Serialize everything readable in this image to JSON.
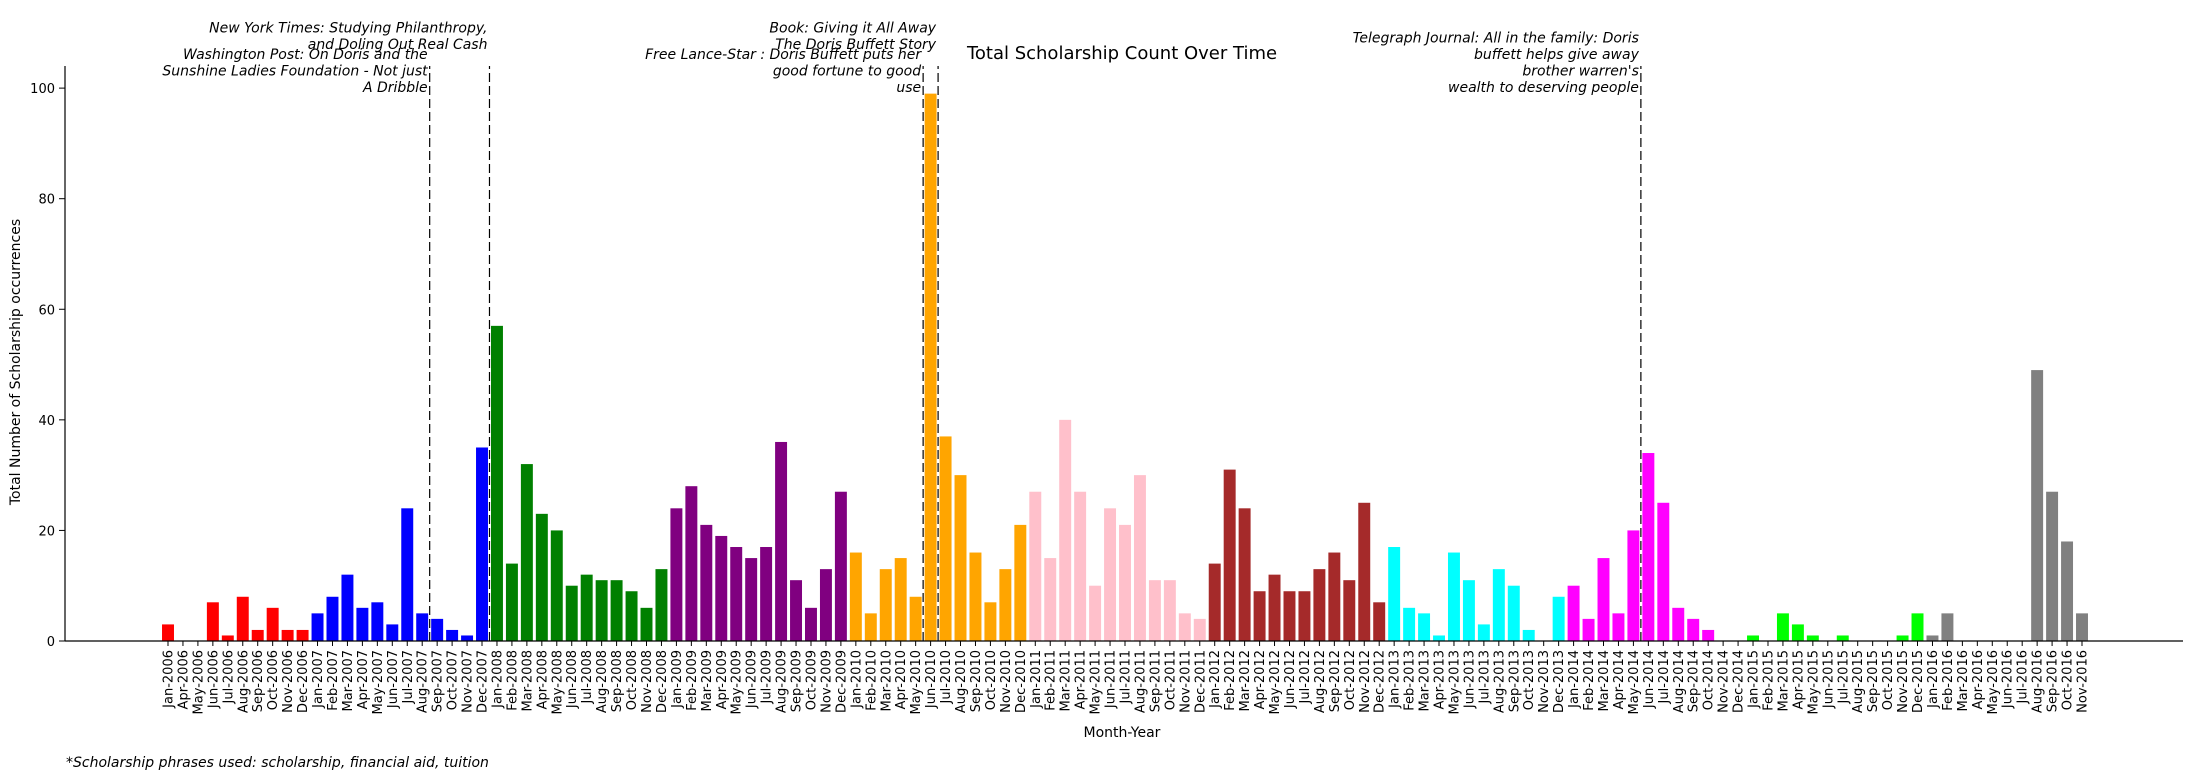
{
  "chart_data": {
    "type": "bar",
    "title": "Total Scholarship Count Over Time",
    "xlabel": "Month-Year",
    "ylabel": "Total Number of Scholarship occurrences",
    "ylim": [
      0,
      104
    ],
    "yticks": [
      0,
      20,
      40,
      60,
      80,
      100
    ],
    "grid": false,
    "legend": "none",
    "categories": [
      "Jan-2006",
      "Apr-2006",
      "May-2006",
      "Jun-2006",
      "Jul-2006",
      "Aug-2006",
      "Sep-2006",
      "Oct-2006",
      "Nov-2006",
      "Dec-2006",
      "Jan-2007",
      "Feb-2007",
      "Mar-2007",
      "Apr-2007",
      "May-2007",
      "Jun-2007",
      "Jul-2007",
      "Aug-2007",
      "Sep-2007",
      "Oct-2007",
      "Nov-2007",
      "Dec-2007",
      "Jan-2008",
      "Feb-2008",
      "Mar-2008",
      "Apr-2008",
      "May-2008",
      "Jun-2008",
      "Jul-2008",
      "Aug-2008",
      "Sep-2008",
      "Oct-2008",
      "Nov-2008",
      "Dec-2008",
      "Jan-2009",
      "Feb-2009",
      "Mar-2009",
      "Apr-2009",
      "May-2009",
      "Jun-2009",
      "Jul-2009",
      "Aug-2009",
      "Sep-2009",
      "Oct-2009",
      "Nov-2009",
      "Dec-2009",
      "Jan-2010",
      "Feb-2010",
      "Mar-2010",
      "Apr-2010",
      "May-2010",
      "Jun-2010",
      "Jul-2010",
      "Aug-2010",
      "Sep-2010",
      "Oct-2010",
      "Nov-2010",
      "Dec-2010",
      "Jan-2011",
      "Feb-2011",
      "Mar-2011",
      "Apr-2011",
      "May-2011",
      "Jun-2011",
      "Jul-2011",
      "Aug-2011",
      "Sep-2011",
      "Oct-2011",
      "Nov-2011",
      "Dec-2011",
      "Jan-2012",
      "Feb-2012",
      "Mar-2012",
      "Apr-2012",
      "May-2012",
      "Jun-2012",
      "Jul-2012",
      "Aug-2012",
      "Sep-2012",
      "Oct-2012",
      "Nov-2012",
      "Dec-2012",
      "Jan-2013",
      "Feb-2013",
      "Mar-2013",
      "Apr-2013",
      "May-2013",
      "Jun-2013",
      "Jul-2013",
      "Aug-2013",
      "Sep-2013",
      "Oct-2013",
      "Nov-2013",
      "Dec-2013",
      "Jan-2014",
      "Feb-2014",
      "Mar-2014",
      "Apr-2014",
      "May-2014",
      "Jun-2014",
      "Jul-2014",
      "Aug-2014",
      "Sep-2014",
      "Oct-2014",
      "Nov-2014",
      "Dec-2014",
      "Jan-2015",
      "Feb-2015",
      "Mar-2015",
      "Apr-2015",
      "May-2015",
      "Jun-2015",
      "Jul-2015",
      "Aug-2015",
      "Sep-2015",
      "Oct-2015",
      "Nov-2015",
      "Dec-2015",
      "Jan-2016",
      "Feb-2016",
      "Mar-2016",
      "Apr-2016",
      "May-2016",
      "Jun-2016",
      "Jul-2016",
      "Aug-2016",
      "Sep-2016",
      "Oct-2016",
      "Nov-2016"
    ],
    "values": [
      3,
      0,
      0,
      7,
      1,
      8,
      2,
      6,
      2,
      2,
      5,
      8,
      12,
      6,
      7,
      3,
      24,
      5,
      4,
      2,
      1,
      35,
      57,
      14,
      32,
      23,
      20,
      10,
      12,
      11,
      11,
      9,
      6,
      13,
      24,
      28,
      21,
      19,
      17,
      15,
      17,
      36,
      11,
      6,
      13,
      27,
      16,
      5,
      13,
      15,
      8,
      99,
      37,
      30,
      16,
      7,
      13,
      21,
      27,
      15,
      40,
      27,
      10,
      24,
      21,
      30,
      11,
      11,
      5,
      4,
      14,
      31,
      24,
      9,
      12,
      9,
      9,
      13,
      16,
      11,
      25,
      7,
      17,
      6,
      5,
      1,
      16,
      11,
      3,
      13,
      10,
      2,
      0,
      8,
      10,
      4,
      15,
      5,
      20,
      34,
      25,
      6,
      4,
      2,
      0,
      0,
      1,
      0,
      5,
      3,
      1,
      0,
      1,
      0,
      0,
      0,
      1,
      5,
      1,
      5,
      0,
      0,
      0,
      0,
      0,
      49,
      27,
      18,
      5
    ],
    "year_colors": {
      "2006": "#ff0000",
      "2007": "#0000ff",
      "2008": "#008000",
      "2009": "#800080",
      "2010": "#ffa500",
      "2011": "#ffc0cb",
      "2012": "#a52a2a",
      "2013": "#00ffff",
      "2014": "#ff00ff",
      "2015": "#00ff00",
      "2016": "#808080"
    },
    "annotations": [
      {
        "at": "Aug-2007",
        "text": [
          "Washington Post: On Doris and the",
          "Sunshine Ladies  Foundation - Not just",
          "A Dribble"
        ]
      },
      {
        "at": "Dec-2007",
        "text": [
          "New York Times: Studying Philanthropy,",
          "and Doling Out Real Cash"
        ]
      },
      {
        "at": "May-2010",
        "text": [
          "Free Lance-Star : Doris Buffett puts her",
          "good fortune to good",
          "use"
        ]
      },
      {
        "at": "Jun-2010",
        "text": [
          "Book: Giving it All Away",
          "The Doris Buffett Story"
        ]
      },
      {
        "at": "May-2014",
        "text": [
          "Telegraph Journal: All in the family: Doris",
          "buffett helps give away",
          "brother warren's",
          "wealth to deserving people"
        ]
      }
    ],
    "footnote": "*Scholarship phrases used: scholarship, financial aid, tuition"
  }
}
